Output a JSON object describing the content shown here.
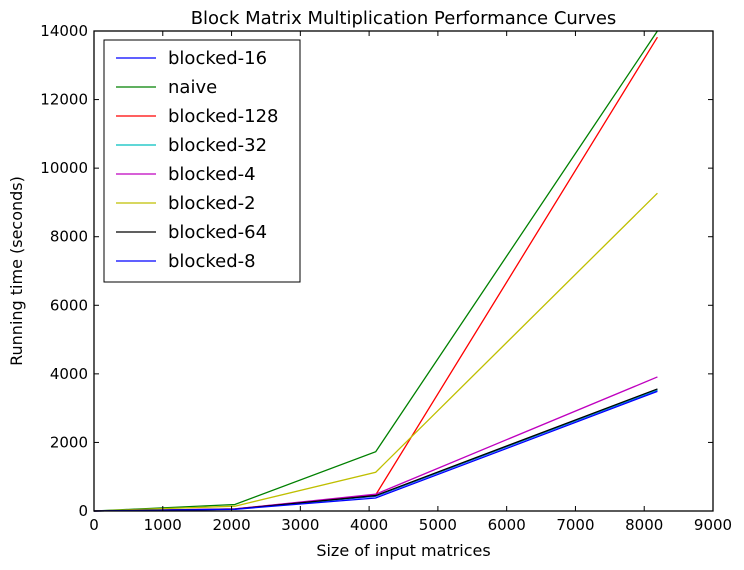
{
  "chart_data": {
    "type": "line",
    "title": "Block Matrix Multiplication Performance Curves",
    "xlabel": "Size of input matrices",
    "ylabel": "Running time (seconds)",
    "xlim": [
      0,
      9000
    ],
    "ylim": [
      0,
      14000
    ],
    "xticks": [
      0,
      1000,
      2000,
      3000,
      4000,
      5000,
      6000,
      7000,
      8000,
      9000
    ],
    "yticks": [
      0,
      2000,
      4000,
      6000,
      8000,
      10000,
      12000,
      14000
    ],
    "grid": false,
    "legend_position": "upper-left",
    "x": [
      0,
      2048,
      4096,
      8192
    ],
    "series": [
      {
        "name": "blocked-16",
        "color": "#0000ff",
        "values": [
          0,
          55,
          430,
          3530
        ]
      },
      {
        "name": "naive",
        "color": "#008000",
        "values": [
          0,
          190,
          1730,
          14000
        ]
      },
      {
        "name": "blocked-128",
        "color": "#ff0000",
        "values": [
          0,
          60,
          470,
          13820
        ]
      },
      {
        "name": "blocked-32",
        "color": "#00bfbf",
        "values": [
          0,
          55,
          440,
          3540
        ]
      },
      {
        "name": "blocked-4",
        "color": "#bf00bf",
        "values": [
          0,
          60,
          490,
          3910
        ]
      },
      {
        "name": "blocked-2",
        "color": "#bfbf00",
        "values": [
          0,
          140,
          1130,
          9270
        ]
      },
      {
        "name": "blocked-64",
        "color": "#000000",
        "values": [
          0,
          55,
          450,
          3560
        ]
      },
      {
        "name": "blocked-8",
        "color": "#0000ff",
        "values": [
          0,
          50,
          380,
          3490
        ]
      }
    ]
  }
}
